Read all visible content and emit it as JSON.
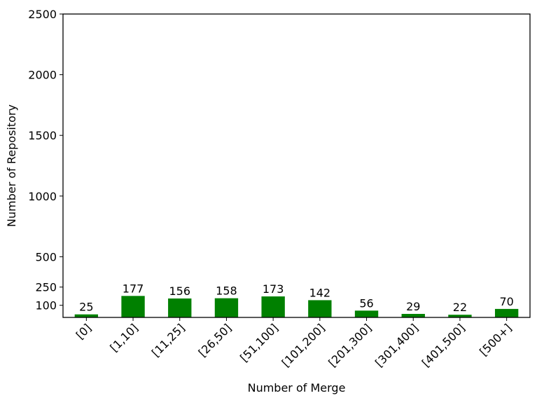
{
  "chart_data": {
    "type": "bar",
    "title": "",
    "xlabel": "Number of Merge",
    "ylabel": "Number of Repository",
    "categories": [
      "[0]",
      "[1,10]",
      "[11,25]",
      "[26,50]",
      "[51,100]",
      "[101,200]",
      "[201,300]",
      "[301,400]",
      "[401,500]",
      "[500+]"
    ],
    "values": [
      25,
      177,
      156,
      158,
      173,
      142,
      56,
      29,
      22,
      70
    ],
    "data_labels": [
      "25",
      "177",
      "156",
      "158",
      "173",
      "142",
      "56",
      "29",
      "22",
      "70"
    ],
    "y_ticks": [
      100,
      250,
      500,
      1000,
      1500,
      2000,
      2500
    ],
    "y_tick_labels": [
      "100",
      "250",
      "500",
      "1000",
      "1500",
      "2000",
      "2500"
    ],
    "ylim": [
      0,
      2500
    ],
    "bar_color": "#008000",
    "grid": false,
    "legend": "none"
  }
}
